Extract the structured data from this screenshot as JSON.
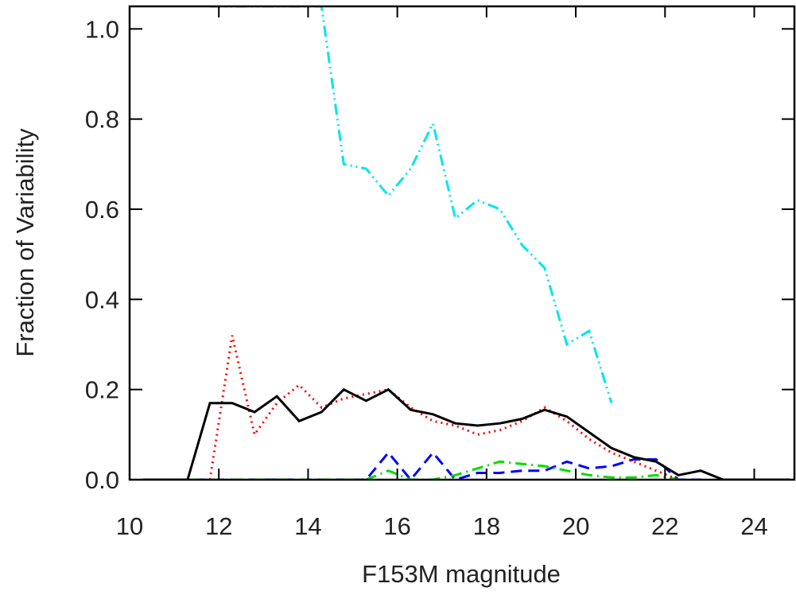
{
  "chart_data": {
    "type": "line",
    "x_label": "F153M magnitude",
    "y_label": "Fraction of Variability",
    "xlim": [
      10,
      24.9
    ],
    "ylim": [
      0,
      1.05
    ],
    "xticks": [
      10,
      12,
      14,
      16,
      18,
      20,
      22,
      24
    ],
    "yticks": [
      {
        "value": 0,
        "label": "0.0"
      },
      0.2,
      0.4,
      0.6,
      0.8,
      {
        "value": 1,
        "label": "1.0"
      }
    ],
    "x": [
      10.3,
      10.8,
      11.3,
      11.8,
      12.3,
      12.8,
      13.3,
      13.8,
      14.3,
      14.8,
      15.3,
      15.8,
      16.3,
      16.8,
      17.3,
      17.8,
      18.3,
      18.8,
      19.3,
      19.8,
      20.3,
      20.8,
      21.3,
      21.8,
      22.3,
      22.8,
      23.3,
      23.8,
      24.3,
      24.8
    ],
    "series": [
      {
        "color": "#0000ff",
        "dash": "dashed",
        "values": [
          0,
          0,
          0,
          0,
          0,
          0,
          0,
          0,
          0,
          0,
          0,
          0.06,
          0,
          0.06,
          0,
          0.015,
          0.015,
          0.02,
          0.02,
          0.04,
          0.025,
          0.03,
          0.045,
          0.045,
          0,
          0,
          null,
          null,
          null,
          null
        ]
      },
      {
        "color": "#00dd00",
        "dash": "dash-dot",
        "values": [
          0,
          0,
          0,
          0,
          0,
          0,
          0,
          0,
          0,
          0,
          0,
          0.02,
          0,
          0,
          0.01,
          0.025,
          0.04,
          0.035,
          0.03,
          0.02,
          0.01,
          0.005,
          0.005,
          0.01,
          0,
          null,
          null,
          null,
          null,
          null
        ]
      },
      {
        "color": "#ff0000",
        "dash": "dotted",
        "values": [
          null,
          null,
          null,
          0,
          0.32,
          0.1,
          0.17,
          0.21,
          0.16,
          0.18,
          0.19,
          0.2,
          0.16,
          0.13,
          0.12,
          0.1,
          0.11,
          0.13,
          0.16,
          0.13,
          0.09,
          0.06,
          0.04,
          0.02,
          0,
          null,
          null,
          null,
          null,
          null
        ]
      },
      {
        "color": "#00e5ee",
        "dash": "dash-dot-dot",
        "values": [
          null,
          null,
          null,
          1.05,
          1.05,
          1.05,
          1.05,
          1.05,
          1.05,
          0.7,
          0.69,
          0.63,
          0.69,
          0.79,
          0.58,
          0.62,
          0.6,
          0.52,
          0.47,
          0.3,
          0.33,
          0.17,
          null,
          null,
          null,
          null,
          null,
          null,
          null,
          null
        ]
      },
      {
        "color": "#000000",
        "dash": "solid",
        "values": [
          0,
          0,
          0,
          0.17,
          0.17,
          0.15,
          0.185,
          0.13,
          0.15,
          0.2,
          0.175,
          0.2,
          0.155,
          0.145,
          0.125,
          0.12,
          0.125,
          0.135,
          0.155,
          0.14,
          0.105,
          0.07,
          0.05,
          0.04,
          0.01,
          0.02,
          0,
          0,
          0,
          0
        ]
      }
    ]
  }
}
